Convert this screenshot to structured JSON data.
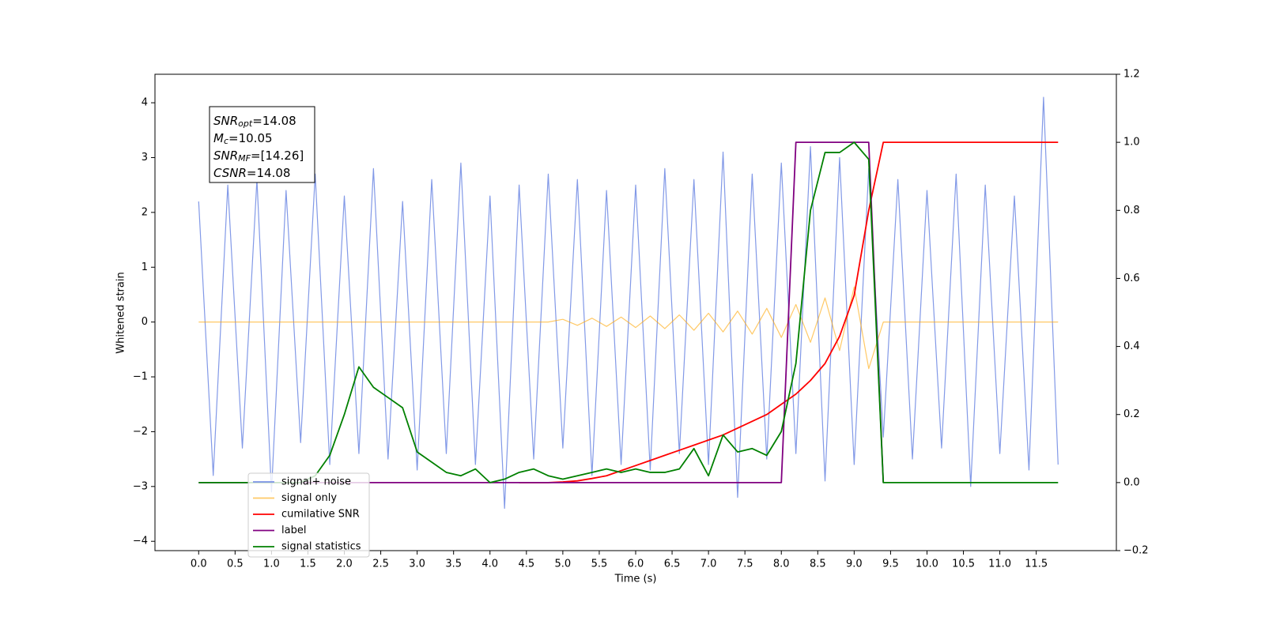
{
  "chart_data": {
    "type": "line",
    "xlabel": "Time (s)",
    "ylabel": "Whitened strain",
    "annotation": [
      {
        "text": "SNR",
        "sub": "opt",
        "rest": "=14.08"
      },
      {
        "text": "M",
        "sub": "c",
        "rest": "=10.05"
      },
      {
        "text": "SNR",
        "sub": "MF",
        "rest": "=[14.26]"
      },
      {
        "text": "CSNR",
        "sub": "",
        "rest": "=14.08"
      }
    ],
    "legend": "lower left",
    "x": [
      0,
      0.2,
      0.4,
      0.6,
      0.8,
      1,
      1.2,
      1.4,
      1.6,
      1.8,
      2,
      2.2,
      2.4,
      2.6,
      2.8,
      3,
      3.2,
      3.4,
      3.6,
      3.8,
      4,
      4.2,
      4.4,
      4.6,
      4.8,
      5,
      5.2,
      5.4,
      5.6,
      5.8,
      6,
      6.2,
      6.4,
      6.6,
      6.8,
      7,
      7.2,
      7.4,
      7.6,
      7.8,
      8,
      8.2,
      8.4,
      8.6,
      8.8,
      9,
      9.2,
      9.4,
      9.6,
      9.8,
      10,
      10.2,
      10.4,
      10.6,
      10.8,
      11,
      11.2,
      11.4,
      11.6,
      11.8
    ],
    "xlim": [
      -0.6,
      12.6
    ],
    "xticks": [
      {
        "value": 0,
        "label": "0.0"
      },
      0.5,
      {
        "value": 1,
        "label": "1.0"
      },
      1.5,
      {
        "value": 2,
        "label": "2.0"
      },
      2.5,
      {
        "value": 3,
        "label": "3.0"
      },
      3.5,
      {
        "value": 4,
        "label": "4.0"
      },
      4.5,
      {
        "value": 5,
        "label": "5.0"
      },
      5.5,
      {
        "value": 6,
        "label": "6.0"
      },
      6.5,
      {
        "value": 7,
        "label": "7.0"
      },
      7.5,
      {
        "value": 8,
        "label": "8.0"
      },
      8.5,
      {
        "value": 9,
        "label": "9.0"
      },
      9.5,
      {
        "value": 10,
        "label": "10.0"
      },
      10.5,
      {
        "value": 11,
        "label": "11.0"
      },
      11.5
    ],
    "ylim": [
      -4.17,
      4.52
    ],
    "yticks": [
      {
        "value": -4,
        "label": "−4"
      },
      {
        "value": -3,
        "label": "−3"
      },
      {
        "value": -2,
        "label": "−2"
      },
      {
        "value": -1,
        "label": "−1"
      },
      0,
      1,
      2,
      3,
      4
    ],
    "y2lim": [
      -0.2,
      1.2
    ],
    "y2ticks": [
      {
        "value": -0.2,
        "label": "−0.2"
      },
      {
        "value": 0,
        "label": "0.0"
      },
      0.2,
      0.4,
      0.6,
      0.8,
      {
        "value": 1,
        "label": "1.0"
      },
      1.2
    ],
    "series": [
      {
        "name": "signal+ noise",
        "color": "#7b93e6",
        "values": [
          2.2,
          -2.8,
          2.5,
          -2.3,
          2.6,
          -3.1,
          2.4,
          -2.2,
          2.7,
          -2.6,
          2.3,
          -2.4,
          2.8,
          -2.5,
          2.2,
          -2.7,
          2.6,
          -2.4,
          2.9,
          -2.6,
          2.3,
          -3.4,
          2.5,
          -2.5,
          2.7,
          -2.3,
          2.6,
          -2.8,
          2.4,
          -2.6,
          2.5,
          -2.7,
          2.8,
          -2.4,
          2.6,
          -2.6,
          3.1,
          -3.2,
          2.7,
          -2.5,
          2.9,
          -2.4,
          3.2,
          -2.9,
          3.0,
          -2.6,
          2.8,
          -2.1,
          2.6,
          -2.5,
          2.4,
          -2.3,
          2.7,
          -3.0,
          2.5,
          -2.4,
          2.3,
          -2.7,
          4.1,
          -2.6
        ]
      },
      {
        "name": "signal only",
        "color": "#ffa500",
        "values": [
          0,
          0,
          0,
          0,
          0,
          0,
          0,
          0,
          0,
          0,
          0,
          0,
          0,
          0,
          0,
          0,
          0,
          0,
          0,
          0,
          0,
          0,
          0,
          0,
          0,
          0.05,
          -0.06,
          0.07,
          -0.08,
          0.09,
          -0.1,
          0.11,
          -0.12,
          0.13,
          -0.15,
          0.16,
          -0.18,
          0.2,
          -0.22,
          0.25,
          -0.28,
          0.32,
          -0.37,
          0.44,
          -0.52,
          0.64,
          -0.85,
          0,
          0,
          0,
          0,
          0,
          0,
          0,
          0,
          0,
          0,
          0,
          0,
          0
        ]
      },
      {
        "name": "cumilative SNR",
        "color": "#ff0000",
        "axis": "y2",
        "values": [
          null,
          null,
          null,
          null,
          null,
          null,
          null,
          null,
          null,
          null,
          null,
          null,
          null,
          null,
          null,
          null,
          null,
          null,
          null,
          null,
          null,
          null,
          0,
          0,
          0,
          0.002,
          0.005,
          0.012,
          0.02,
          0.035,
          0.05,
          0.065,
          0.08,
          0.095,
          0.11,
          0.125,
          0.14,
          0.16,
          0.18,
          0.2,
          0.23,
          0.26,
          0.3,
          0.35,
          0.43,
          0.55,
          0.8,
          1,
          1,
          1,
          1,
          1,
          1,
          1,
          1,
          1,
          1,
          1,
          1,
          1
        ]
      },
      {
        "name": "label",
        "color": "#800080",
        "axis": "y2",
        "values": [
          0,
          0,
          0,
          0,
          0,
          0,
          0,
          0,
          0,
          0,
          0,
          0,
          0,
          0,
          0,
          0,
          0,
          0,
          0,
          0,
          0,
          0,
          0,
          0,
          0,
          0,
          0,
          0,
          0,
          0,
          0,
          0,
          0,
          0,
          0,
          0,
          0,
          0,
          0,
          0,
          0,
          1,
          1,
          1,
          1,
          1,
          1,
          0,
          null,
          null,
          null,
          null,
          null,
          null,
          null,
          null,
          null,
          null,
          null,
          null
        ]
      },
      {
        "name": "signal statistics",
        "color": "#008000",
        "axis": "y2",
        "values": [
          0,
          0,
          0,
          0,
          0,
          0,
          0,
          0,
          0.02,
          0.08,
          0.2,
          0.34,
          0.28,
          0.25,
          0.22,
          0.09,
          0.06,
          0.03,
          0.02,
          0.04,
          0.0,
          0.01,
          0.03,
          0.04,
          0.02,
          0.01,
          0.02,
          0.03,
          0.04,
          0.03,
          0.04,
          0.03,
          0.03,
          0.04,
          0.1,
          0.02,
          0.14,
          0.09,
          0.1,
          0.08,
          0.15,
          0.35,
          0.8,
          0.97,
          0.97,
          1.0,
          0.95,
          0.0,
          0,
          0,
          0,
          0,
          0,
          0,
          0,
          0,
          0,
          0,
          0,
          0
        ]
      }
    ]
  }
}
